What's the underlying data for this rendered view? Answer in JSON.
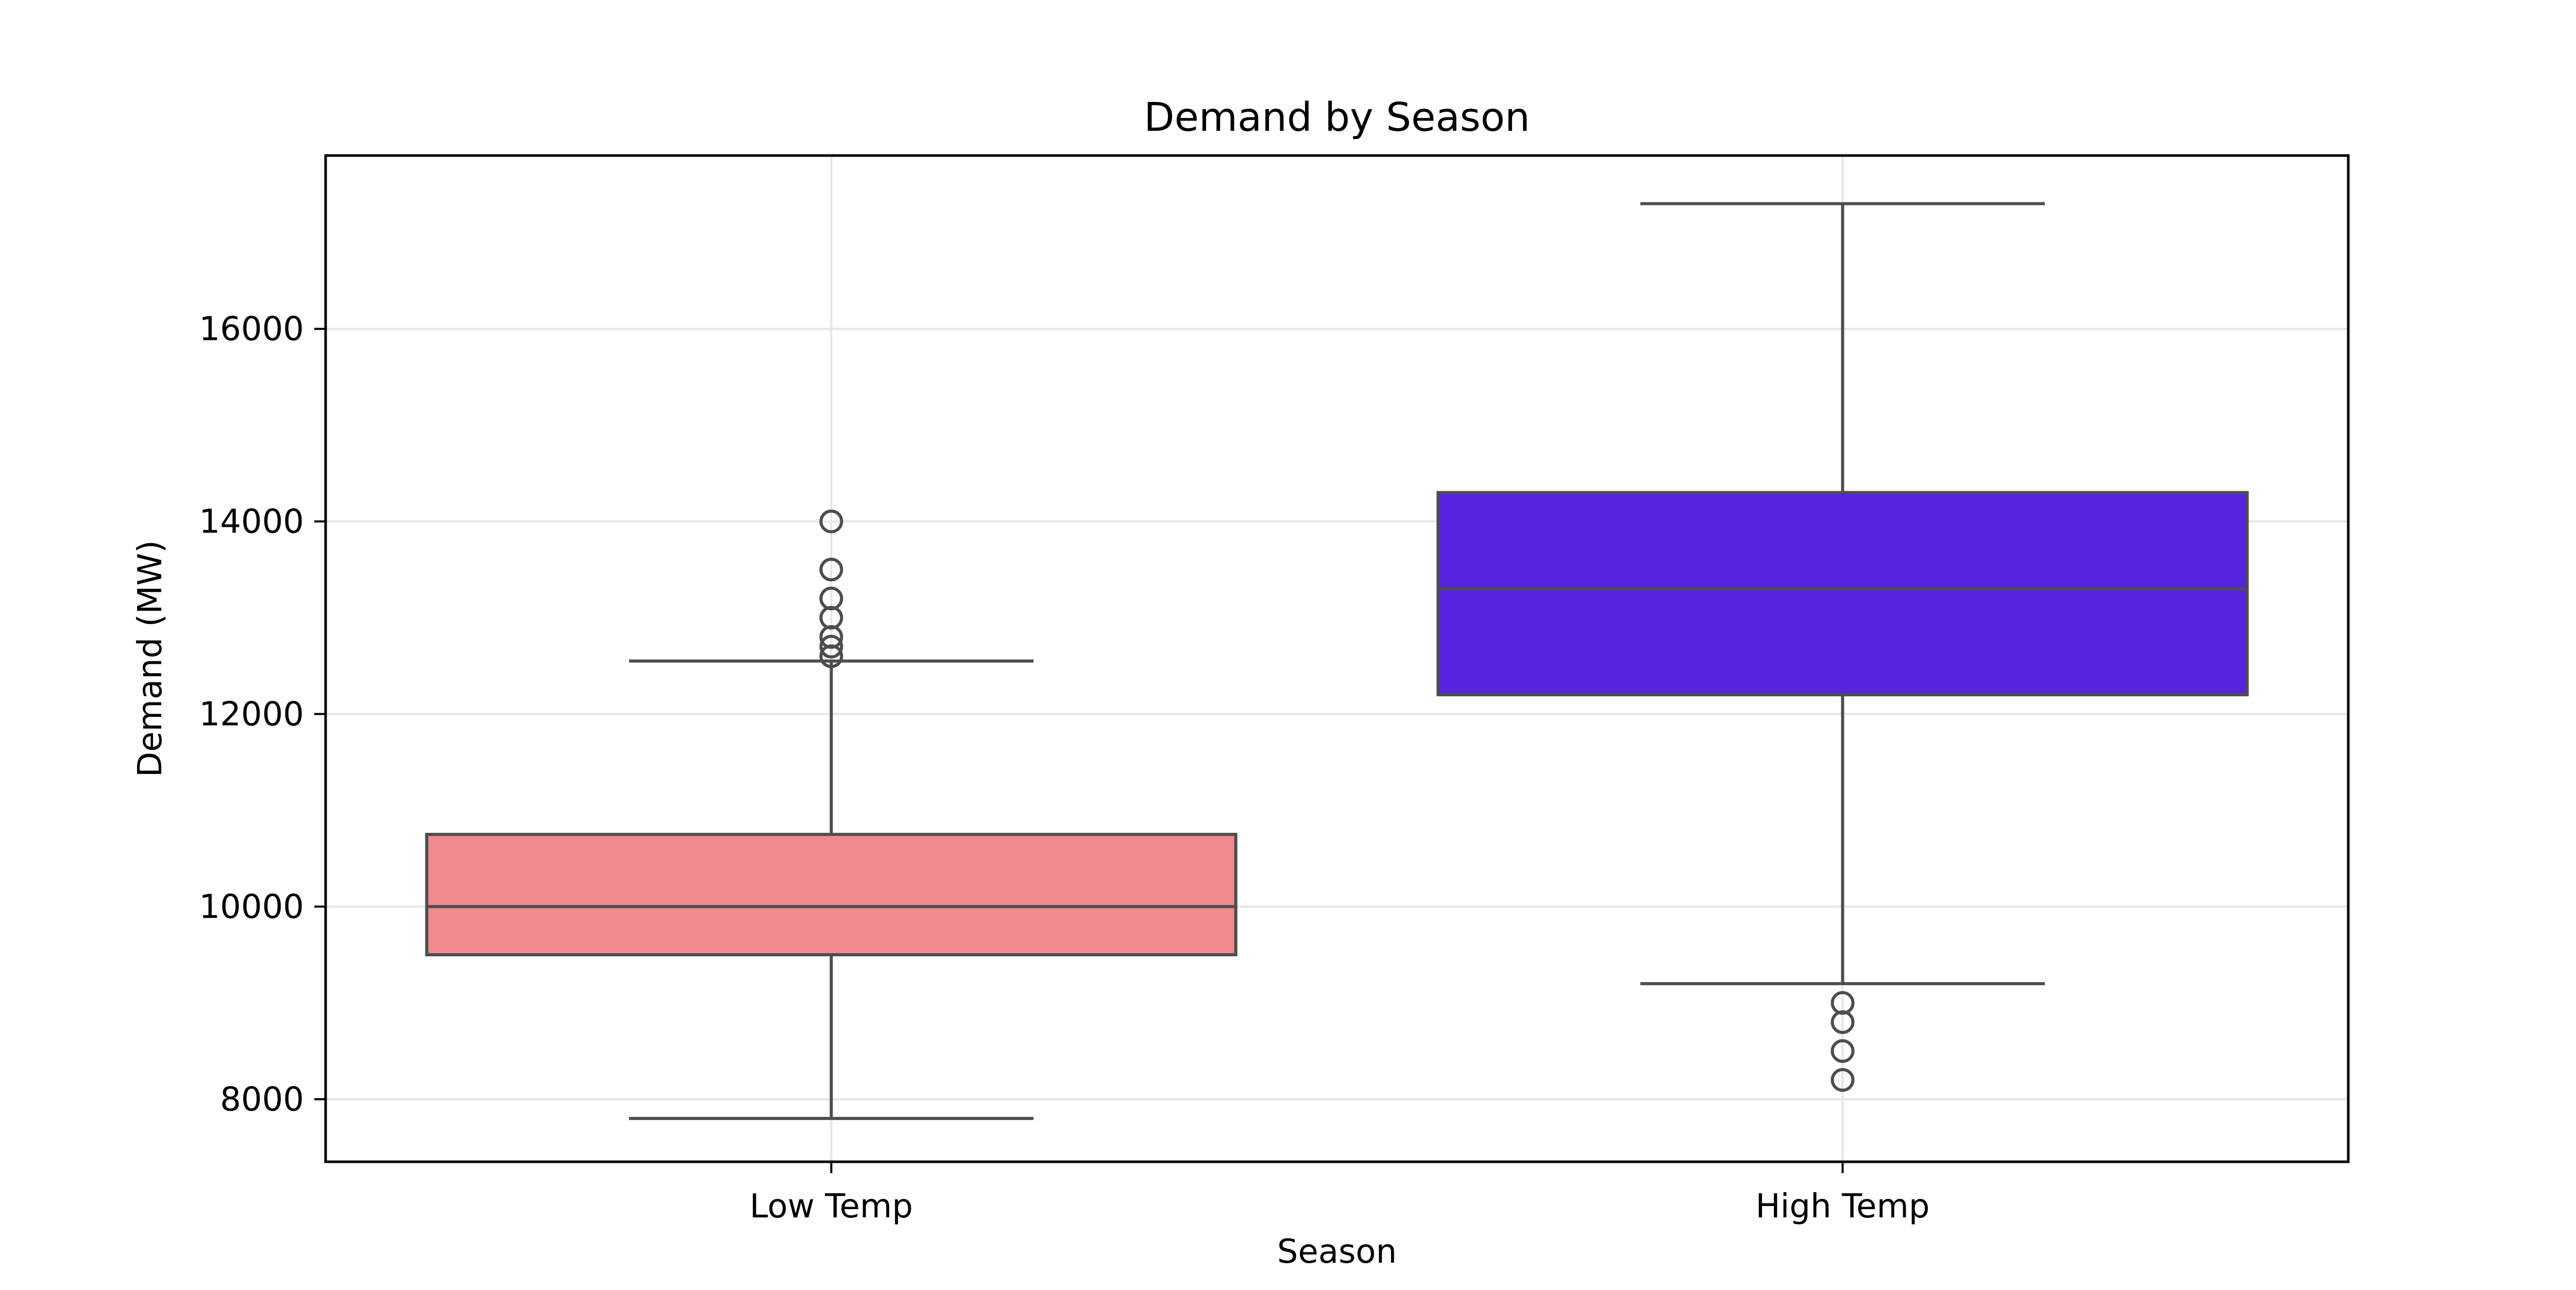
{
  "chart_data": {
    "type": "box",
    "title": "Demand by Season",
    "xlabel": "Season",
    "ylabel": "Demand (MW)",
    "categories": [
      "Low Temp",
      "High Temp"
    ],
    "ylim": [
      7350,
      17800
    ],
    "yticks": [
      8000,
      10000,
      12000,
      14000,
      16000
    ],
    "grid": true,
    "legend": "none",
    "colors": {
      "Low Temp": "#ef8a8f",
      "High Temp": "#5522e0",
      "line": "#4d4d4d",
      "grid": "#e6e6e6"
    },
    "boxes": [
      {
        "category": "Low Temp",
        "whisker_low": 7800,
        "q1": 9500,
        "median": 10000,
        "q3": 10750,
        "whisker_high": 12550,
        "outliers": [
          12600,
          12700,
          12800,
          13000,
          13200,
          13500,
          14000
        ]
      },
      {
        "category": "High Temp",
        "whisker_low": 9200,
        "q1": 12200,
        "median": 13300,
        "q3": 14300,
        "whisker_high": 17300,
        "outliers": [
          8200,
          8500,
          8800,
          9000
        ]
      }
    ]
  }
}
